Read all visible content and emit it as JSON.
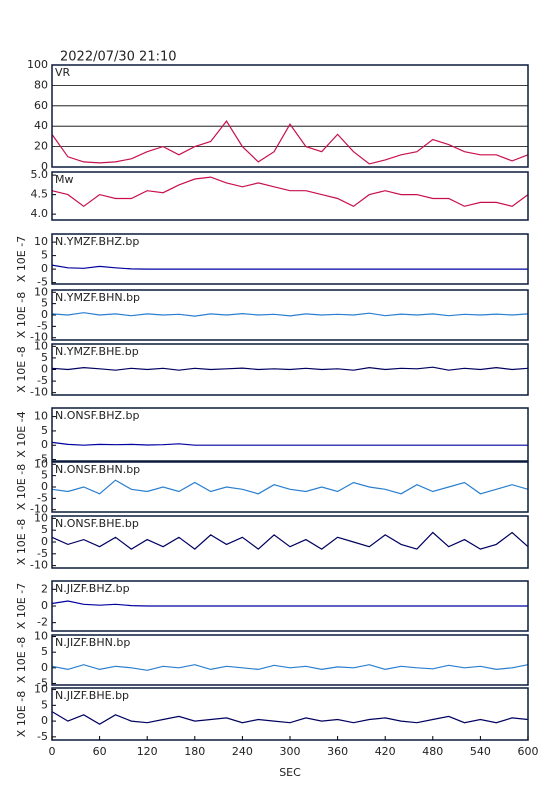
{
  "chart_data": [
    {
      "type": "line",
      "title": "2022/07/30 21:10",
      "label": "VR",
      "color": "#c8104a",
      "grid": true,
      "x": [
        0,
        20,
        40,
        60,
        80,
        100,
        120,
        140,
        160,
        180,
        200,
        220,
        240,
        260,
        280,
        300,
        320,
        340,
        360,
        380,
        400,
        420,
        440,
        460,
        480,
        500,
        520,
        540,
        560,
        580,
        600
      ],
      "values": [
        32,
        10,
        5,
        4,
        5,
        8,
        15,
        20,
        12,
        20,
        25,
        45,
        20,
        5,
        15,
        42,
        20,
        15,
        32,
        15,
        3,
        7,
        12,
        15,
        27,
        22,
        15,
        12,
        12,
        6,
        12
      ],
      "xlim": [
        0,
        600
      ],
      "ylim": [
        0,
        100
      ],
      "yticks": [
        0,
        20,
        40,
        60,
        80,
        100
      ]
    },
    {
      "type": "line",
      "label": "Mw",
      "color": "#c8104a",
      "x": [
        0,
        20,
        40,
        60,
        80,
        100,
        120,
        140,
        160,
        180,
        200,
        220,
        240,
        260,
        280,
        300,
        320,
        340,
        360,
        380,
        400,
        420,
        440,
        460,
        480,
        500,
        520,
        540,
        560,
        580,
        600
      ],
      "values": [
        4.6,
        4.5,
        4.2,
        4.5,
        4.4,
        4.4,
        4.6,
        4.55,
        4.75,
        4.9,
        4.95,
        4.8,
        4.7,
        4.8,
        4.7,
        4.6,
        4.6,
        4.5,
        4.4,
        4.2,
        4.5,
        4.6,
        4.5,
        4.5,
        4.4,
        4.4,
        4.2,
        4.3,
        4.3,
        4.2,
        4.5
      ],
      "xlim": [
        0,
        600
      ],
      "ylim": [
        3.85,
        5.08
      ],
      "yticks": [
        {
          "value": 4,
          "label": "4.0"
        },
        4.5,
        {
          "value": 5,
          "label": "5.0"
        }
      ]
    },
    {
      "type": "line",
      "label": "N.YMZF.BHZ.bp",
      "ylabel": "X 10E -7",
      "color": "#0000a0",
      "x": [
        0,
        20,
        40,
        60,
        80,
        100,
        120,
        140,
        160,
        180,
        200,
        220,
        240,
        260,
        280,
        300,
        320,
        340,
        360,
        380,
        400,
        420,
        440,
        460,
        480,
        500,
        520,
        540,
        560,
        580,
        600
      ],
      "values": [
        1.5,
        0.5,
        0.3,
        1,
        0.5,
        0.1,
        0,
        0,
        0,
        0,
        0,
        0,
        0,
        0,
        0,
        0,
        0,
        0,
        0,
        0,
        0,
        0,
        0,
        0,
        0,
        0,
        0,
        0,
        0,
        0,
        0
      ],
      "xlim": [
        0,
        600
      ],
      "ylim": [
        -5.5,
        13
      ],
      "yticks": [
        -5,
        0,
        5,
        10
      ]
    },
    {
      "type": "line",
      "label": "N.YMZF.BHN.bp",
      "ylabel": "X 10E -8",
      "color": "#2a7fd0",
      "x": [
        0,
        20,
        40,
        60,
        80,
        100,
        120,
        140,
        160,
        180,
        200,
        220,
        240,
        260,
        280,
        300,
        320,
        340,
        360,
        380,
        400,
        420,
        440,
        460,
        480,
        500,
        520,
        540,
        560,
        580,
        600
      ],
      "values": [
        0.5,
        0,
        1,
        0,
        0.5,
        -0.3,
        0.5,
        0,
        0.3,
        -0.5,
        0.5,
        0,
        0.6,
        0,
        0.3,
        -0.4,
        0.5,
        0,
        0.3,
        0,
        0.8,
        -0.3,
        0.4,
        0,
        0.5,
        -0.3,
        0.3,
        0,
        0.4,
        0,
        0.5
      ],
      "xlim": [
        0,
        600
      ],
      "ylim": [
        -11,
        11
      ],
      "yticks": [
        -10,
        -5,
        0,
        5,
        10
      ]
    },
    {
      "type": "line",
      "label": "N.YMZF.BHE.bp",
      "ylabel": "X 10E -8",
      "color": "#000060",
      "x": [
        0,
        20,
        40,
        60,
        80,
        100,
        120,
        140,
        160,
        180,
        200,
        220,
        240,
        260,
        280,
        300,
        320,
        340,
        360,
        380,
        400,
        420,
        440,
        460,
        480,
        500,
        520,
        540,
        560,
        580,
        600
      ],
      "values": [
        0.5,
        0,
        0.8,
        0.3,
        -0.3,
        0.5,
        0,
        0.5,
        -0.3,
        0.5,
        0,
        0.3,
        0.6,
        0,
        0.3,
        0,
        0.5,
        0,
        0.3,
        -0.3,
        0.8,
        0,
        0.5,
        0.3,
        1,
        -0.3,
        0.5,
        0,
        0.8,
        0,
        0.5
      ],
      "xlim": [
        0,
        600
      ],
      "ylim": [
        -11,
        11
      ],
      "yticks": [
        -10,
        -5,
        0,
        5,
        10
      ]
    },
    {
      "type": "line",
      "label": "N.ONSF.BHZ.bp",
      "ylabel": "X 10E -4",
      "color": "#0000a0",
      "x": [
        0,
        20,
        40,
        60,
        80,
        100,
        120,
        140,
        160,
        180,
        200,
        220,
        240,
        260,
        280,
        300,
        320,
        340,
        360,
        380,
        400,
        420,
        440,
        460,
        480,
        500,
        520,
        540,
        560,
        580,
        600
      ],
      "values": [
        1,
        0.3,
        0,
        0.3,
        0.2,
        0.3,
        0.1,
        0.2,
        0.5,
        0,
        0,
        0,
        0,
        0,
        0,
        0,
        0,
        0,
        0,
        0,
        0,
        0,
        0,
        0,
        0,
        0,
        0,
        0,
        0,
        0,
        0
      ],
      "xlim": [
        0,
        600
      ],
      "ylim": [
        -5.5,
        13
      ],
      "yticks": [
        -5,
        0,
        5,
        10
      ]
    },
    {
      "type": "line",
      "label": "N.ONSF.BHN.bp",
      "ylabel": "X 10E -8",
      "color": "#2a7fd0",
      "x": [
        0,
        20,
        40,
        60,
        80,
        100,
        120,
        140,
        160,
        180,
        200,
        220,
        240,
        260,
        280,
        300,
        320,
        340,
        360,
        380,
        400,
        420,
        440,
        460,
        480,
        500,
        520,
        540,
        560,
        580,
        600
      ],
      "values": [
        -1,
        -2,
        0,
        -3,
        3,
        -1,
        -2,
        0,
        -2,
        2,
        -2,
        0,
        -1,
        -3,
        1,
        -1,
        -2,
        0,
        -2,
        2,
        0,
        -1,
        -3,
        1,
        -2,
        0,
        2,
        -3,
        -1,
        1,
        -1
      ],
      "xlim": [
        0,
        600
      ],
      "ylim": [
        -11,
        11
      ],
      "yticks": [
        -10,
        -5,
        0,
        5,
        10
      ]
    },
    {
      "type": "line",
      "label": "N.ONSF.BHE.bp",
      "ylabel": "X 10E -8",
      "color": "#000060",
      "x": [
        0,
        20,
        40,
        60,
        80,
        100,
        120,
        140,
        160,
        180,
        200,
        220,
        240,
        260,
        280,
        300,
        320,
        340,
        360,
        380,
        400,
        420,
        440,
        460,
        480,
        500,
        520,
        540,
        560,
        580,
        600
      ],
      "values": [
        2,
        -1,
        1,
        -2,
        2,
        -3,
        1,
        -2,
        2,
        -3,
        3,
        -1,
        2,
        -3,
        3,
        -2,
        1,
        -3,
        2,
        0,
        -2,
        3,
        -1,
        -3,
        4,
        -2,
        1,
        -3,
        -1,
        4,
        -2
      ],
      "xlim": [
        0,
        600
      ],
      "ylim": [
        -11,
        11
      ],
      "yticks": [
        -10,
        -5,
        0,
        5,
        10
      ]
    },
    {
      "type": "line",
      "label": "N.JIZF.BHZ.bp",
      "ylabel": "X 10E -7",
      "color": "#0000a0",
      "x": [
        0,
        20,
        40,
        60,
        80,
        100,
        120,
        140,
        160,
        180,
        200,
        220,
        240,
        260,
        280,
        300,
        320,
        340,
        360,
        380,
        400,
        420,
        440,
        460,
        480,
        500,
        520,
        540,
        560,
        580,
        600
      ],
      "values": [
        0.3,
        0.6,
        0.2,
        0.1,
        0.2,
        0.05,
        0,
        0,
        0,
        0,
        0,
        0,
        0,
        0,
        0,
        0,
        0,
        0,
        0,
        0,
        0,
        0,
        0,
        0,
        0,
        0,
        0,
        0,
        0,
        0,
        0
      ],
      "xlim": [
        0,
        600
      ],
      "ylim": [
        -3,
        3
      ],
      "yticks": [
        -2,
        0,
        2
      ]
    },
    {
      "type": "line",
      "label": "N.JIZF.BHN.bp",
      "ylabel": "X 10E -8",
      "color": "#2a7fd0",
      "x": [
        0,
        20,
        40,
        60,
        80,
        100,
        120,
        140,
        160,
        180,
        200,
        220,
        240,
        260,
        280,
        300,
        320,
        340,
        360,
        380,
        400,
        420,
        440,
        460,
        480,
        500,
        520,
        540,
        560,
        580,
        600
      ],
      "values": [
        0.5,
        -0.5,
        1,
        -0.5,
        0.5,
        0,
        -0.8,
        0.5,
        0,
        1,
        -0.5,
        0.5,
        0,
        -0.5,
        0.8,
        0,
        0.5,
        -0.5,
        0.3,
        0,
        1,
        -0.5,
        0.5,
        0,
        -0.3,
        0.8,
        0,
        0.5,
        -0.5,
        0,
        1
      ],
      "xlim": [
        0,
        600
      ],
      "ylim": [
        -5.5,
        10.5
      ],
      "yticks": [
        -5,
        0,
        5,
        10
      ]
    },
    {
      "type": "line",
      "label": "N.JIZF.BHE.bp",
      "ylabel": "X 10E -8",
      "color": "#000060",
      "xlabel": "SEC",
      "x": [
        0,
        20,
        40,
        60,
        80,
        100,
        120,
        140,
        160,
        180,
        200,
        220,
        240,
        260,
        280,
        300,
        320,
        340,
        360,
        380,
        400,
        420,
        440,
        460,
        480,
        500,
        520,
        540,
        560,
        580,
        600
      ],
      "values": [
        3,
        0,
        2,
        -1,
        2,
        0,
        -0.5,
        0.5,
        1.5,
        0,
        0.5,
        1,
        -0.5,
        0.5,
        0,
        -0.5,
        1,
        0,
        0.5,
        -0.5,
        0.5,
        1,
        0,
        -0.5,
        0.5,
        1.5,
        -0.5,
        0.5,
        -0.5,
        1,
        0.5
      ],
      "xlim": [
        0,
        600
      ],
      "ylim": [
        -6,
        10.5
      ],
      "yticks": [
        -5,
        0,
        5,
        10
      ],
      "xticks": [
        0,
        60,
        120,
        180,
        240,
        300,
        360,
        420,
        480,
        540,
        600
      ]
    }
  ]
}
